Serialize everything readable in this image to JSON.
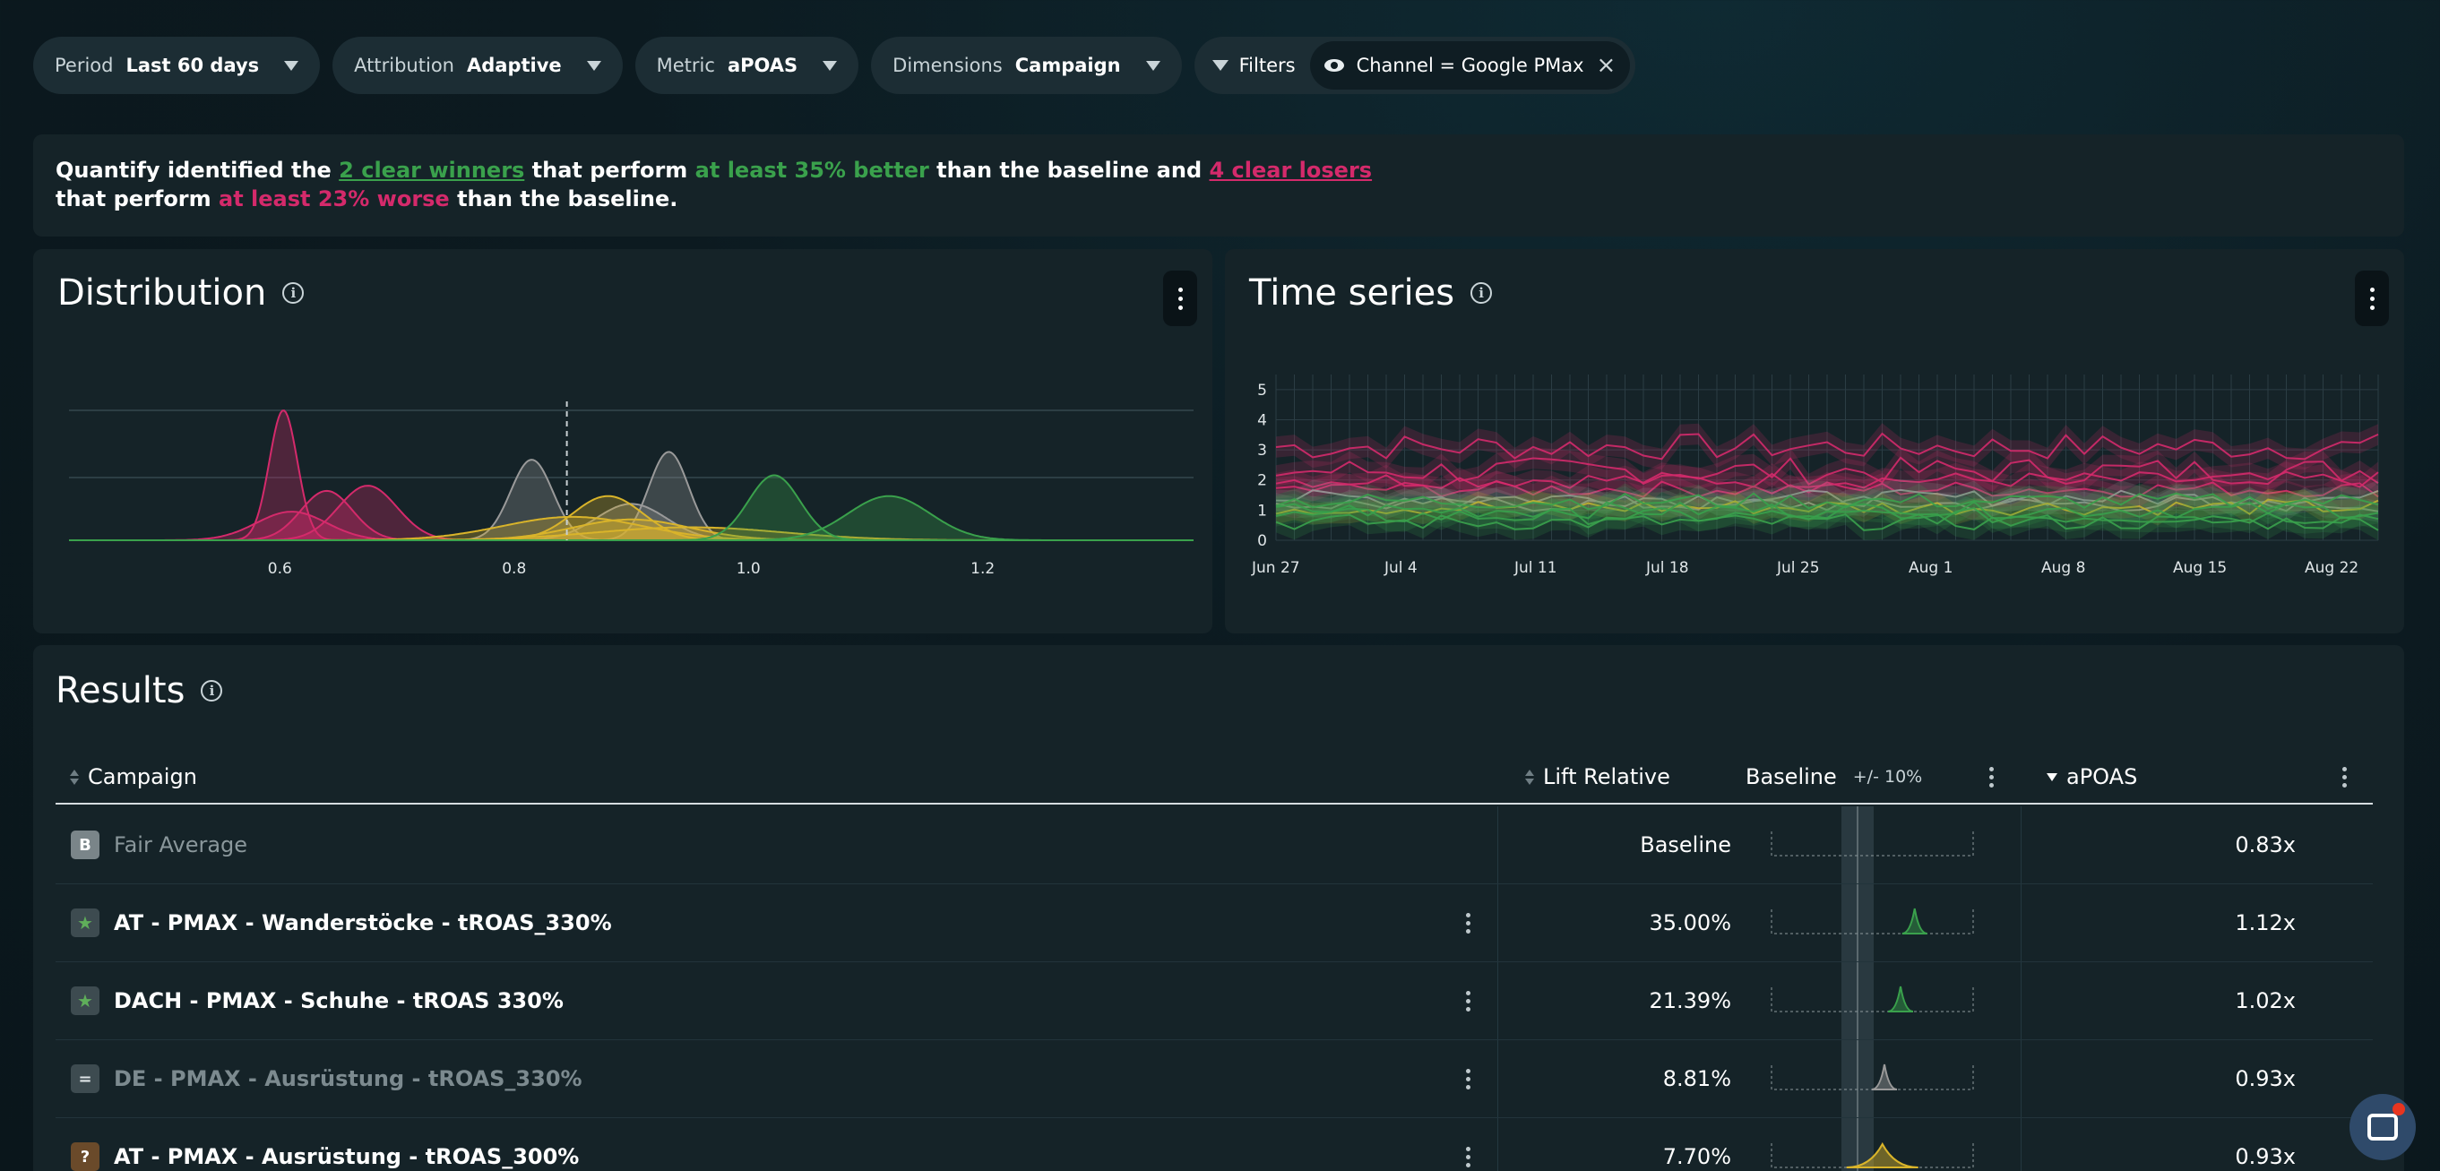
{
  "filters": {
    "period": {
      "label": "Period",
      "value": "Last 60 days"
    },
    "attribution": {
      "label": "Attribution",
      "value": "Adaptive"
    },
    "metric": {
      "label": "Metric",
      "value": "aPOAS"
    },
    "dimensions": {
      "label": "Dimensions",
      "value": "Campaign"
    },
    "filters_label": "Filters",
    "active_filter": "Channel = Google PMax"
  },
  "summary": {
    "p1": "Quantify identified the ",
    "winners": "2 clear winners",
    "p2": " that perform ",
    "better": "at least 35% better",
    "p3": " than the baseline and ",
    "losers": "4 clear losers",
    "p4": "that perform ",
    "worse": "at least 23% worse",
    "p5": " than the baseline."
  },
  "distribution": {
    "title": "Distribution",
    "chart_data": {
      "type": "area",
      "xticks": [
        0.6,
        0.8,
        1.0,
        1.2
      ],
      "xlim": [
        0.42,
        1.38
      ],
      "baseline": 0.845,
      "series": [
        {
          "color": "#d42a6b",
          "mean": 0.603,
          "sd": 0.012,
          "peak": 1.0
        },
        {
          "color": "#d42a6b",
          "mean": 0.64,
          "sd": 0.022,
          "peak": 0.38
        },
        {
          "color": "#d42a6b",
          "mean": 0.675,
          "sd": 0.025,
          "peak": 0.42
        },
        {
          "color": "#d42a6b",
          "mean": 0.61,
          "sd": 0.03,
          "peak": 0.22
        },
        {
          "color": "#9a9a9a",
          "mean": 0.815,
          "sd": 0.018,
          "peak": 0.62
        },
        {
          "color": "#9a9a9a",
          "mean": 0.932,
          "sd": 0.017,
          "peak": 0.68
        },
        {
          "color": "#9a9a9a",
          "mean": 0.9,
          "sd": 0.03,
          "peak": 0.28
        },
        {
          "color": "#d9b42a",
          "mean": 0.88,
          "sd": 0.03,
          "peak": 0.34
        },
        {
          "color": "#d9b42a",
          "mean": 0.85,
          "sd": 0.06,
          "peak": 0.18
        },
        {
          "color": "#d9b42a",
          "mean": 0.9,
          "sd": 0.05,
          "peak": 0.16
        },
        {
          "color": "#d9b42a",
          "mean": 0.95,
          "sd": 0.08,
          "peak": 0.1
        },
        {
          "color": "#3aa14c",
          "mean": 1.022,
          "sd": 0.022,
          "peak": 0.5
        },
        {
          "color": "#3aa14c",
          "mean": 1.12,
          "sd": 0.035,
          "peak": 0.34
        }
      ]
    }
  },
  "timeseries": {
    "title": "Time series",
    "chart_data": {
      "type": "line",
      "yticks": [
        "0",
        "1",
        "2",
        "3",
        "4",
        "5"
      ],
      "ylim": [
        0,
        5.5
      ],
      "xticks": [
        "Jun 27",
        "Jul 4",
        "Jul 11",
        "Jul 18",
        "Jul 25",
        "Aug 1",
        "Aug 8",
        "Aug 15",
        "Aug 22"
      ],
      "series": [
        {
          "color": "#d42a6b",
          "level": 3.1
        },
        {
          "color": "#d42a6b",
          "level": 2.3
        },
        {
          "color": "#d42a6b",
          "level": 2.0
        },
        {
          "color": "#d42a6b",
          "level": 1.7
        },
        {
          "color": "#9a9a9a",
          "level": 1.2
        },
        {
          "color": "#9a9a9a",
          "level": 1.4
        },
        {
          "color": "#d9b42a",
          "level": 1.1
        },
        {
          "color": "#3aa14c",
          "level": 1.0
        },
        {
          "color": "#3aa14c",
          "level": 0.8
        },
        {
          "color": "#3aa14c",
          "level": 0.6
        },
        {
          "color": "#3aa14c",
          "level": 1.3
        }
      ]
    }
  },
  "results": {
    "title": "Results",
    "columns": {
      "campaign": "Campaign",
      "lift": "Lift Relative",
      "baseline": "Baseline",
      "baseline_sub": "+/- 10%",
      "metric": "aPOAS"
    },
    "rows": [
      {
        "badge": "B",
        "name": "Fair Average",
        "lift": "Baseline",
        "value": "0.83x",
        "spark_color": "#9a9a9a",
        "spark_pos": null
      },
      {
        "badge": "★",
        "name": "AT - PMAX - Wanderstöcke - tROAS_330%",
        "lift": "35.00%",
        "value": "1.12x",
        "spark_color": "#3aa14c",
        "spark_pos": 0.71
      },
      {
        "badge": "★",
        "name": "DACH - PMAX - Schuhe - tROAS 330%",
        "lift": "21.39%",
        "value": "1.02x",
        "spark_color": "#3aa14c",
        "spark_pos": 0.64
      },
      {
        "badge": "=",
        "name": "DE - PMAX - Ausrüstung - tROAS_330%",
        "lift": "8.81%",
        "value": "0.93x",
        "spark_color": "#9a9a9a",
        "spark_pos": 0.56
      },
      {
        "badge": "?",
        "name": "AT - PMAX - Ausrüstung - tROAS_300%",
        "lift": "7.70%",
        "value": "0.93x",
        "spark_color": "#d9b42a",
        "spark_pos": 0.55
      }
    ]
  }
}
